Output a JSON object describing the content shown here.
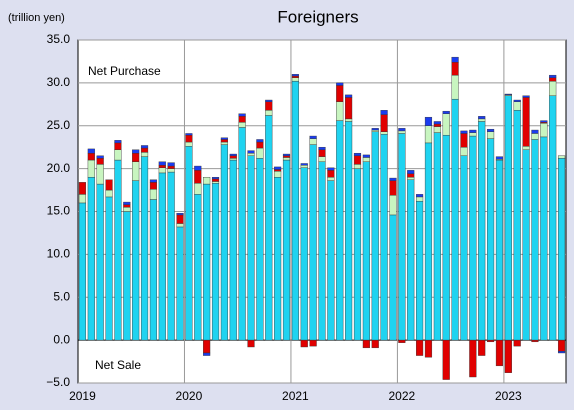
{
  "chart_data": {
    "type": "stacked_bar",
    "title": "Foreigners",
    "unit_label": "(trillion yen)",
    "annotations": [
      "Net Purchase",
      "Net Sale"
    ],
    "categories": [
      "2019",
      null,
      null,
      null,
      null,
      null,
      null,
      null,
      null,
      null,
      null,
      null,
      "2020",
      null,
      null,
      null,
      null,
      null,
      null,
      null,
      null,
      null,
      null,
      null,
      "2021",
      null,
      null,
      null,
      null,
      null,
      null,
      null,
      null,
      null,
      null,
      null,
      "2022",
      null,
      null,
      null,
      null,
      null,
      null,
      null,
      null,
      null,
      null,
      null,
      "2023",
      null,
      null,
      null,
      null,
      null,
      null
    ],
    "series": [
      {
        "color": "#1fd3f0",
        "values": [
          16,
          19,
          18.2,
          16.7,
          21,
          15,
          18.6,
          21.4,
          16.4,
          19.5,
          19.6,
          13.2,
          22.6,
          17,
          18.2,
          18.3,
          22.8,
          21,
          24.8,
          21.5,
          21.2,
          26.2,
          19,
          21,
          30.2,
          20.1,
          22.8,
          20.8,
          18.6,
          25.6,
          25.5,
          20,
          20.8,
          24.3,
          24,
          14.6,
          24.1,
          18.7,
          16.2,
          23,
          24.2,
          23.9,
          28.1,
          21.5,
          23.8,
          25.5,
          23.5,
          21,
          28.5,
          26.8,
          22.2,
          23.4,
          23.7,
          28.5,
          21.2
        ]
      },
      {
        "color": "#c8f5c0",
        "values": [
          1,
          2,
          2.3,
          0.8,
          1.2,
          0.5,
          2.2,
          0.5,
          1.2,
          0.6,
          0.4,
          0.4,
          0.5,
          1.3,
          0.8,
          0.2,
          0.3,
          0.2,
          0.6,
          0.3,
          1.2,
          0.6,
          0.7,
          0.3,
          0.4,
          0.3,
          0.7,
          0.6,
          0.4,
          2.2,
          0.3,
          0.5,
          0.5,
          0.2,
          0.3,
          2.3,
          0.3,
          0.3,
          0.5,
          2.0,
          0.7,
          2.5,
          2.8,
          1.0,
          0.4,
          0.3,
          0.8,
          0.1,
          0.1,
          1.0,
          0.4,
          0.7,
          1.6,
          1.7,
          0.3
        ]
      },
      {
        "color": "#e00000",
        "values": [
          1.4,
          0.8,
          0.7,
          1.2,
          0.8,
          0.3,
          1.0,
          0.5,
          0.8,
          0.3,
          0.3,
          1.0,
          0.8,
          1.5,
          -1.5,
          0.3,
          0.3,
          0.3,
          0.7,
          -0.8,
          0.7,
          1.0,
          0.2,
          0.2,
          0.2,
          -0.8,
          -0.7,
          0.8,
          0.8,
          1.9,
          2.5,
          1.0,
          -0.9,
          -0.9,
          2.0,
          1.7,
          -0.3,
          0.4,
          -1.8,
          -2.0,
          0.3,
          -4.6,
          1.5,
          1.6,
          -4.3,
          -1.8,
          -0.2,
          -3.0,
          -3.8,
          -0.7,
          5.7,
          -0.2,
          0.1,
          0.4,
          -1.3
        ]
      },
      {
        "color": "#1a3cf0",
        "values": [
          0,
          0.5,
          0.3,
          0,
          0.3,
          0.3,
          0.4,
          0.3,
          0.3,
          0.4,
          0.4,
          0.2,
          0.2,
          0.5,
          -0.3,
          0.2,
          0.2,
          0.2,
          0.3,
          0.3,
          0.3,
          0.2,
          0.3,
          0.2,
          0.2,
          0.2,
          0.3,
          0.3,
          0.3,
          0.3,
          0.3,
          0.3,
          0.3,
          0.2,
          0.5,
          0.3,
          0.3,
          0.4,
          0.3,
          1.0,
          0.3,
          0.3,
          0.6,
          0.3,
          0.3,
          0.3,
          0.3,
          0.3,
          0.1,
          0.2,
          0.2,
          0.4,
          0.2,
          0.3,
          -0.2
        ]
      }
    ],
    "ylim": [
      -5,
      35
    ],
    "yticks": [
      {
        "value": -5,
        "label": "−5.0"
      },
      {
        "value": 0,
        "label": "0.0"
      },
      {
        "value": 5,
        "label": "5.0"
      },
      {
        "value": 10,
        "label": "10.0"
      },
      {
        "value": 15,
        "label": "15.0"
      },
      {
        "value": 20,
        "label": "20.0"
      },
      {
        "value": 25,
        "label": "25.0"
      },
      {
        "value": 30,
        "label": "30.0"
      },
      {
        "value": 35,
        "label": "35.0"
      }
    ],
    "grid": true
  }
}
